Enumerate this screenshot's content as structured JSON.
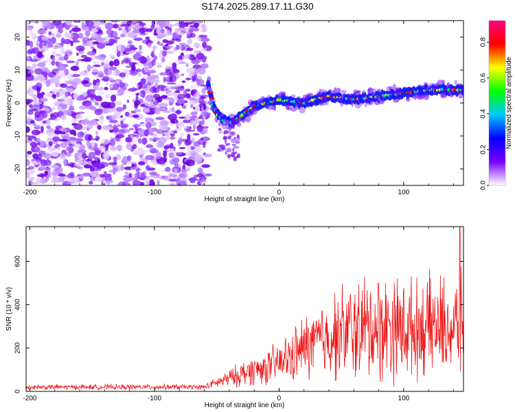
{
  "figure_title": "S174.2025.289.17.11.G30",
  "chart_data": [
    {
      "type": "heatmap",
      "title": "S174.2025.289.17.11.G30",
      "xlabel": "Height of straight line (km)",
      "ylabel": "Frequency (Hz)",
      "xlim": [
        -203,
        148
      ],
      "ylim": [
        -25,
        25
      ],
      "xticks": [
        -200,
        -100,
        0,
        100
      ],
      "yticks": [
        -20,
        -10,
        0,
        10,
        20
      ],
      "colorbar": {
        "label": "Normalized spectral amplitude",
        "range": [
          0,
          0.92
        ],
        "ticks": [
          0.0,
          0.2,
          0.4,
          0.6,
          0.8
        ],
        "colormap": [
          "#ffffff",
          "#7a00ff",
          "#0000ff",
          "#00c8ff",
          "#00ff00",
          "#ffff00",
          "#ff0000",
          "#ff007f"
        ]
      },
      "noise_region_km": [
        -203,
        -57
      ],
      "ridge": {
        "description": "dispersive frequency ridge",
        "points_km_hz": [
          [
            -57,
            6
          ],
          [
            -52,
            -2
          ],
          [
            -45,
            -5
          ],
          [
            -38,
            -6
          ],
          [
            -30,
            -4
          ],
          [
            -20,
            -1
          ],
          [
            -10,
            0
          ],
          [
            0,
            1
          ],
          [
            20,
            0
          ],
          [
            40,
            2
          ],
          [
            60,
            1
          ],
          [
            80,
            2
          ],
          [
            100,
            3
          ],
          [
            120,
            4
          ],
          [
            148,
            4
          ]
        ]
      }
    },
    {
      "type": "line",
      "xlabel": "Height of straight line (km)",
      "ylabel": "SNR (10 * v/v)",
      "xlim": [
        -203,
        148
      ],
      "ylim": [
        0,
        760
      ],
      "xticks": [
        -200,
        -100,
        0,
        100
      ],
      "yticks": [
        0,
        200,
        400,
        600
      ],
      "line_color": "#ee1111",
      "envelope": {
        "x": [
          -203,
          -60,
          -50,
          -40,
          -30,
          -20,
          -10,
          0,
          10,
          20,
          30,
          40,
          50,
          60,
          70,
          80,
          90,
          100,
          110,
          120,
          130,
          140,
          148
        ],
        "mean": [
          20,
          20,
          40,
          60,
          80,
          100,
          110,
          130,
          160,
          200,
          230,
          250,
          270,
          280,
          290,
          300,
          300,
          290,
          290,
          300,
          300,
          290,
          300
        ],
        "spread": [
          12,
          12,
          25,
          40,
          60,
          70,
          80,
          100,
          120,
          150,
          170,
          190,
          220,
          240,
          250,
          260,
          250,
          240,
          220,
          230,
          230,
          220,
          250
        ]
      },
      "peak": {
        "x": 145,
        "y": 760
      }
    }
  ]
}
